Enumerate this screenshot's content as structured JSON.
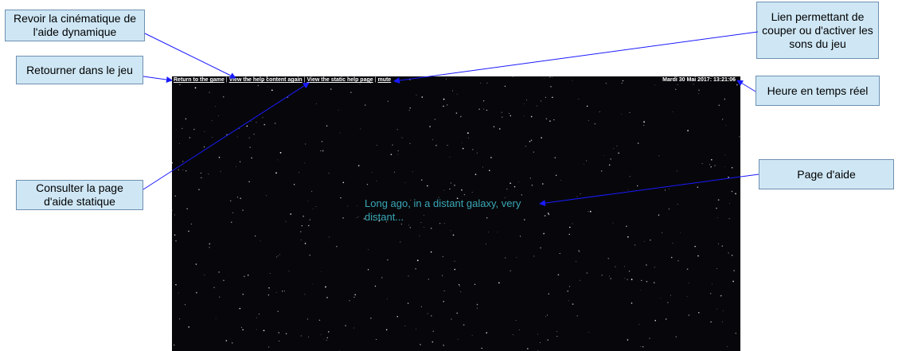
{
  "game": {
    "nav": {
      "return_label": "Return to the game",
      "help_again_label": "View the help content again",
      "static_help_label": "View the static help page",
      "mute_label": "mute",
      "separator": "|"
    },
    "clock": "Mardi 30 Mai 2017: 13:21:06",
    "intro_text": "Long ago, in a distant galaxy, very distant..."
  },
  "callouts": {
    "revoir": "Revoir la cinématique de l'aide dynamique",
    "retourner": "Retourner dans le jeu",
    "consulter": "Consulter la page d'aide statique",
    "lien": "Lien permettant de couper ou d'activer les sons du jeu",
    "heure": "Heure en temps réel",
    "page_aide": "Page d'aide"
  },
  "colors": {
    "screen_bg": "#07070b",
    "intro_text": "#3aa7b5",
    "callout_bg": "#cfe7f5",
    "callout_border": "#6d8fb0",
    "arrow": "#1a1aff"
  }
}
